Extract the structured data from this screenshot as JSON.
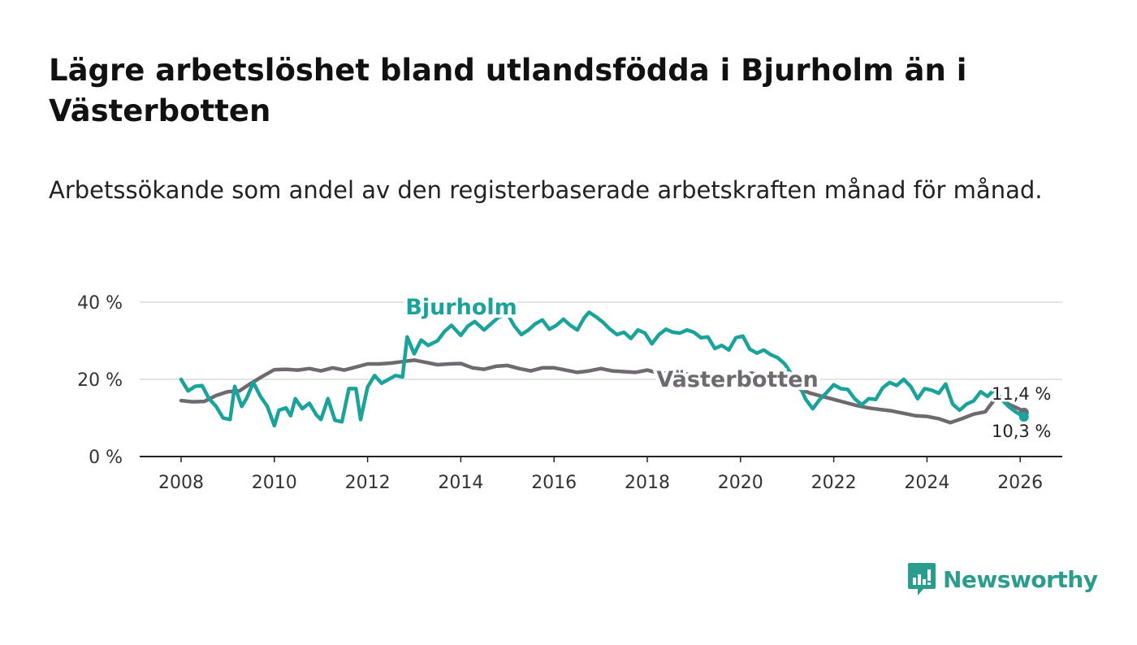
{
  "title": "Lägre arbetslöshet bland utlandsfödda i Bjurholm än i Västerbotten",
  "subtitle": "Arbetssökande som andel av den registerbaserade arbetskraften månad för månad.",
  "brand": {
    "name": "Newsworthy",
    "color": "#2a9d8f"
  },
  "chart_data": {
    "type": "line",
    "y_unit": "%",
    "ylim": [
      0,
      40
    ],
    "xlim": [
      2007.5,
      2026.9
    ],
    "y_ticks": [
      "0 %",
      "20 %",
      "40 %"
    ],
    "y_tick_values": [
      0,
      20,
      40
    ],
    "x_ticks": [
      "2008",
      "2010",
      "2012",
      "2014",
      "2016",
      "2018",
      "2020",
      "2022",
      "2024",
      "2026"
    ],
    "x_tick_values": [
      2008,
      2010,
      2012,
      2014,
      2016,
      2018,
      2020,
      2022,
      2024,
      2026
    ],
    "grid": true,
    "series": [
      {
        "name": "Västerbotten",
        "color": "#6e6a70",
        "end_label": "11,4 %",
        "points": [
          [
            2008.0,
            14.5
          ],
          [
            2008.25,
            14.2
          ],
          [
            2008.5,
            14.3
          ],
          [
            2008.75,
            15.8
          ],
          [
            2009.0,
            16.8
          ],
          [
            2009.25,
            17.0
          ],
          [
            2009.5,
            19.0
          ],
          [
            2009.75,
            20.8
          ],
          [
            2010.0,
            22.5
          ],
          [
            2010.25,
            22.6
          ],
          [
            2010.5,
            22.4
          ],
          [
            2010.75,
            22.8
          ],
          [
            2011.0,
            22.2
          ],
          [
            2011.25,
            23.0
          ],
          [
            2011.5,
            22.4
          ],
          [
            2011.75,
            23.2
          ],
          [
            2012.0,
            24.0
          ],
          [
            2012.25,
            24.0
          ],
          [
            2012.5,
            24.2
          ],
          [
            2012.75,
            24.6
          ],
          [
            2013.0,
            25.0
          ],
          [
            2013.25,
            24.4
          ],
          [
            2013.5,
            23.8
          ],
          [
            2013.75,
            24.0
          ],
          [
            2014.0,
            24.1
          ],
          [
            2014.25,
            23.0
          ],
          [
            2014.5,
            22.6
          ],
          [
            2014.75,
            23.4
          ],
          [
            2015.0,
            23.6
          ],
          [
            2015.25,
            22.8
          ],
          [
            2015.5,
            22.2
          ],
          [
            2015.75,
            23.0
          ],
          [
            2016.0,
            23.0
          ],
          [
            2016.25,
            22.4
          ],
          [
            2016.5,
            21.8
          ],
          [
            2016.75,
            22.2
          ],
          [
            2017.0,
            22.8
          ],
          [
            2017.25,
            22.2
          ],
          [
            2017.5,
            22.0
          ],
          [
            2017.75,
            21.8
          ],
          [
            2018.0,
            22.4
          ],
          [
            2018.25,
            21.6
          ],
          [
            2018.5,
            21.6
          ],
          [
            2018.75,
            21.4
          ],
          [
            2019.0,
            21.3
          ],
          [
            2019.25,
            21.4
          ],
          [
            2019.5,
            21.1
          ],
          [
            2019.75,
            21.0
          ],
          [
            2020.0,
            21.2
          ],
          [
            2020.25,
            21.6
          ],
          [
            2020.5,
            20.8
          ],
          [
            2020.75,
            19.8
          ],
          [
            2021.0,
            18.6
          ],
          [
            2021.25,
            17.6
          ],
          [
            2021.5,
            16.4
          ],
          [
            2021.75,
            15.6
          ],
          [
            2022.0,
            14.8
          ],
          [
            2022.25,
            14.0
          ],
          [
            2022.5,
            13.2
          ],
          [
            2022.75,
            12.6
          ],
          [
            2023.0,
            12.2
          ],
          [
            2023.25,
            11.8
          ],
          [
            2023.5,
            11.2
          ],
          [
            2023.75,
            10.6
          ],
          [
            2024.0,
            10.4
          ],
          [
            2024.25,
            9.8
          ],
          [
            2024.5,
            8.8
          ],
          [
            2024.75,
            9.8
          ],
          [
            2025.0,
            11.0
          ],
          [
            2025.25,
            11.6
          ],
          [
            2025.5,
            15.6
          ],
          [
            2025.75,
            13.6
          ],
          [
            2026.0,
            12.2
          ],
          [
            2026.08,
            11.4
          ]
        ]
      },
      {
        "name": "Bjurholm",
        "color": "#1aa39a",
        "end_label": "10,3 %",
        "points": [
          [
            2008.0,
            20.0
          ],
          [
            2008.15,
            17.0
          ],
          [
            2008.3,
            18.2
          ],
          [
            2008.45,
            18.4
          ],
          [
            2008.6,
            15.0
          ],
          [
            2008.75,
            13.0
          ],
          [
            2008.9,
            10.0
          ],
          [
            2009.05,
            9.6
          ],
          [
            2009.15,
            18.2
          ],
          [
            2009.3,
            13.0
          ],
          [
            2009.4,
            15.0
          ],
          [
            2009.55,
            19.2
          ],
          [
            2009.7,
            15.6
          ],
          [
            2009.85,
            13.0
          ],
          [
            2010.0,
            8.0
          ],
          [
            2010.1,
            12.0
          ],
          [
            2010.25,
            12.6
          ],
          [
            2010.35,
            10.6
          ],
          [
            2010.45,
            15.0
          ],
          [
            2010.6,
            12.4
          ],
          [
            2010.75,
            13.8
          ],
          [
            2010.9,
            10.8
          ],
          [
            2011.0,
            9.6
          ],
          [
            2011.15,
            15.0
          ],
          [
            2011.3,
            9.4
          ],
          [
            2011.45,
            9.0
          ],
          [
            2011.6,
            17.6
          ],
          [
            2011.75,
            17.6
          ],
          [
            2011.85,
            9.6
          ],
          [
            2012.0,
            18.0
          ],
          [
            2012.15,
            21.0
          ],
          [
            2012.3,
            19.0
          ],
          [
            2012.45,
            20.0
          ],
          [
            2012.6,
            21.0
          ],
          [
            2012.75,
            20.6
          ],
          [
            2012.85,
            31.0
          ],
          [
            2013.0,
            26.6
          ],
          [
            2013.15,
            30.2
          ],
          [
            2013.3,
            28.8
          ],
          [
            2013.5,
            30.0
          ],
          [
            2013.65,
            32.4
          ],
          [
            2013.8,
            34.0
          ],
          [
            2014.0,
            31.4
          ],
          [
            2014.15,
            33.8
          ],
          [
            2014.3,
            35.0
          ],
          [
            2014.5,
            32.8
          ],
          [
            2014.65,
            34.4
          ],
          [
            2014.8,
            36.0
          ],
          [
            2015.0,
            37.0
          ],
          [
            2015.15,
            33.8
          ],
          [
            2015.3,
            31.6
          ],
          [
            2015.45,
            32.8
          ],
          [
            2015.6,
            34.4
          ],
          [
            2015.75,
            35.4
          ],
          [
            2015.9,
            33.0
          ],
          [
            2016.05,
            34.0
          ],
          [
            2016.2,
            35.6
          ],
          [
            2016.35,
            34.0
          ],
          [
            2016.5,
            32.8
          ],
          [
            2016.65,
            36.0
          ],
          [
            2016.75,
            37.4
          ],
          [
            2016.9,
            36.2
          ],
          [
            2017.05,
            34.8
          ],
          [
            2017.2,
            33.0
          ],
          [
            2017.35,
            31.6
          ],
          [
            2017.5,
            32.2
          ],
          [
            2017.65,
            30.6
          ],
          [
            2017.8,
            32.8
          ],
          [
            2017.95,
            32.0
          ],
          [
            2018.1,
            29.2
          ],
          [
            2018.25,
            31.6
          ],
          [
            2018.4,
            33.0
          ],
          [
            2018.55,
            32.2
          ],
          [
            2018.7,
            32.0
          ],
          [
            2018.85,
            32.8
          ],
          [
            2019.0,
            32.2
          ],
          [
            2019.15,
            30.8
          ],
          [
            2019.3,
            31.0
          ],
          [
            2019.45,
            28.0
          ],
          [
            2019.6,
            28.8
          ],
          [
            2019.75,
            27.6
          ],
          [
            2019.9,
            30.8
          ],
          [
            2020.05,
            31.2
          ],
          [
            2020.2,
            27.8
          ],
          [
            2020.35,
            26.8
          ],
          [
            2020.5,
            27.6
          ],
          [
            2020.65,
            26.4
          ],
          [
            2020.8,
            25.6
          ],
          [
            2020.95,
            24.0
          ],
          [
            2021.1,
            21.2
          ],
          [
            2021.25,
            18.8
          ],
          [
            2021.4,
            14.8
          ],
          [
            2021.55,
            12.4
          ],
          [
            2021.7,
            14.8
          ],
          [
            2021.85,
            16.6
          ],
          [
            2022.0,
            18.6
          ],
          [
            2022.15,
            17.6
          ],
          [
            2022.3,
            17.4
          ],
          [
            2022.45,
            15.0
          ],
          [
            2022.6,
            13.4
          ],
          [
            2022.75,
            15.0
          ],
          [
            2022.9,
            14.8
          ],
          [
            2023.05,
            17.8
          ],
          [
            2023.2,
            19.2
          ],
          [
            2023.35,
            18.4
          ],
          [
            2023.5,
            20.0
          ],
          [
            2023.65,
            18.2
          ],
          [
            2023.8,
            15.0
          ],
          [
            2023.95,
            17.6
          ],
          [
            2024.1,
            17.2
          ],
          [
            2024.25,
            16.4
          ],
          [
            2024.4,
            18.8
          ],
          [
            2024.55,
            13.6
          ],
          [
            2024.7,
            12.0
          ],
          [
            2024.85,
            13.6
          ],
          [
            2025.0,
            14.4
          ],
          [
            2025.15,
            16.8
          ],
          [
            2025.3,
            15.6
          ],
          [
            2025.45,
            17.4
          ],
          [
            2025.6,
            14.8
          ],
          [
            2025.75,
            13.0
          ],
          [
            2025.9,
            11.6
          ],
          [
            2026.08,
            10.3
          ]
        ]
      }
    ],
    "annotations": [
      {
        "text": "Bjurholm",
        "series": "Bjurholm",
        "position": "above line near 2014"
      },
      {
        "text": "Västerbotten",
        "series": "Västerbotten",
        "position": "on line near 2020"
      }
    ]
  }
}
